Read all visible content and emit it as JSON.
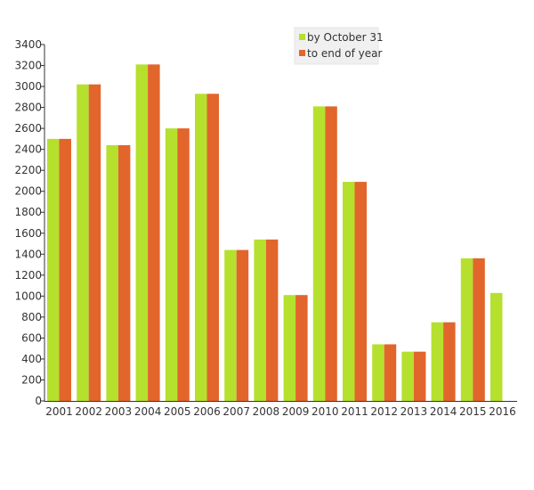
{
  "chart_data": {
    "type": "bar",
    "categories": [
      "2001",
      "2002",
      "2003",
      "2004",
      "2005",
      "2006",
      "2007",
      "2008",
      "2009",
      "2010",
      "2011",
      "2012",
      "2013",
      "2014",
      "2015",
      "2016"
    ],
    "series": [
      {
        "name": "by October 31",
        "color": "#b5e02e",
        "values": [
          2500,
          3020,
          2440,
          3210,
          2600,
          2930,
          1440,
          1540,
          1010,
          2810,
          2090,
          540,
          470,
          750,
          1360,
          1030
        ]
      },
      {
        "name": "to end of year",
        "color": "#e2652c",
        "values": [
          2500,
          3020,
          2440,
          3210,
          2600,
          2930,
          1440,
          1540,
          1010,
          2810,
          2090,
          540,
          470,
          750,
          1360,
          null
        ]
      }
    ],
    "yticks": [
      "0",
      "200",
      "400",
      "600",
      "800",
      "1000",
      "1200",
      "1400",
      "1600",
      "1800",
      "2000",
      "2200",
      "2400",
      "2600",
      "2800",
      "3000",
      "3200",
      "3400"
    ],
    "ylim": [
      0,
      3400
    ],
    "grid": false,
    "legend": "top-right",
    "title": "",
    "xlabel": "",
    "ylabel": ""
  }
}
